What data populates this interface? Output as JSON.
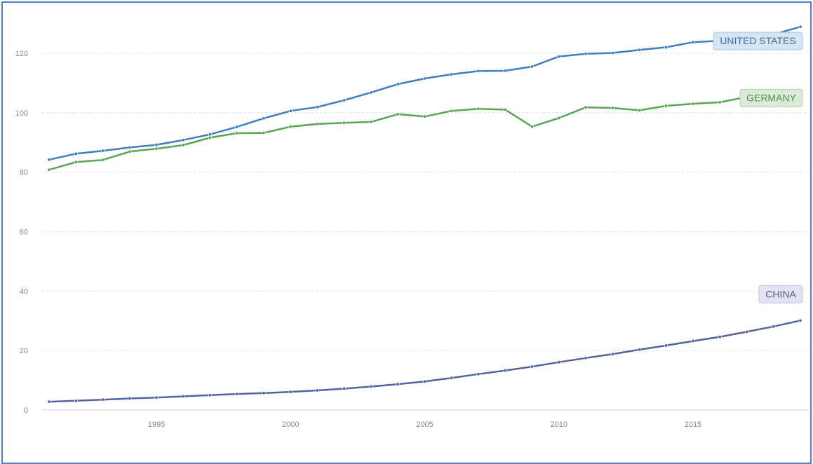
{
  "chart_data": {
    "type": "line",
    "title": "",
    "xlabel": "",
    "ylabel": "",
    "xlim": [
      1991,
      2019
    ],
    "ylim": [
      0,
      130
    ],
    "grid": true,
    "x_ticks": [
      1995,
      2000,
      2005,
      2010,
      2015
    ],
    "y_ticks": [
      0,
      20,
      40,
      60,
      80,
      100,
      120
    ],
    "x": [
      1991,
      1992,
      1993,
      1994,
      1995,
      1996,
      1997,
      1998,
      1999,
      2000,
      2001,
      2002,
      2003,
      2004,
      2005,
      2006,
      2007,
      2008,
      2009,
      2010,
      2011,
      2012,
      2013,
      2014,
      2015,
      2016,
      2017,
      2018,
      2019
    ],
    "series": [
      {
        "name": "UNITED STATES",
        "color": "#3f7dc1",
        "label_bg": "#d6e4f3",
        "label_border": "#a9c3e2",
        "label_color": "#3f6fa8",
        "values": [
          84.2,
          86.2,
          87.2,
          88.3,
          89.2,
          90.8,
          92.7,
          95.2,
          98.1,
          100.6,
          101.9,
          104.2,
          106.8,
          109.6,
          111.5,
          112.9,
          114.0,
          114.1,
          115.5,
          118.9,
          119.8,
          120.1,
          121.1,
          122.0,
          123.7,
          124.2,
          126.1,
          126.3,
          128.9
        ]
      },
      {
        "name": "GERMANY",
        "color": "#57a54f",
        "label_bg": "#dcebd9",
        "label_border": "#b3d2ad",
        "label_color": "#4e8f47",
        "values": [
          80.8,
          83.4,
          84.1,
          86.9,
          87.9,
          89.1,
          91.6,
          93.1,
          93.2,
          95.3,
          96.2,
          96.6,
          96.9,
          99.5,
          98.7,
          100.6,
          101.3,
          101.0,
          95.3,
          98.2,
          101.8,
          101.6,
          100.8,
          102.3,
          103.0,
          103.5,
          105.3,
          105.9,
          106.0
        ]
      },
      {
        "name": "CHINA",
        "color": "#5561a6",
        "label_bg": "#e2e2f0",
        "label_border": "#c1c3df",
        "label_color": "#555b95",
        "values": [
          2.8,
          3.1,
          3.5,
          3.9,
          4.2,
          4.6,
          5.0,
          5.4,
          5.7,
          6.1,
          6.6,
          7.2,
          7.9,
          8.7,
          9.6,
          10.8,
          12.1,
          13.3,
          14.6,
          16.1,
          17.5,
          18.8,
          20.3,
          21.7,
          23.2,
          24.6,
          26.3,
          28.1,
          30.1
        ]
      }
    ]
  }
}
